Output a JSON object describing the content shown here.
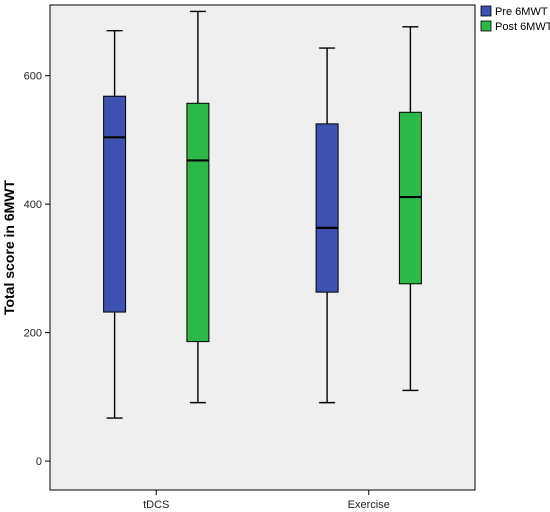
{
  "chart_data": {
    "type": "boxplot",
    "title": "",
    "xlabel": "",
    "ylabel": "Total score in 6MWT",
    "categories": [
      "tDCS",
      "Exercise"
    ],
    "ylim": [
      -45,
      710
    ],
    "yticks": [
      0,
      200,
      400,
      600
    ],
    "grid": false,
    "legend_position": "top-right",
    "series": [
      {
        "name": "Pre 6MWT",
        "color": "#3f51b0",
        "boxes": [
          {
            "category": "tDCS",
            "min": 67,
            "q1": 232,
            "median": 504,
            "q3": 568,
            "max": 670
          },
          {
            "category": "Exercise",
            "min": 91,
            "q1": 263,
            "median": 363,
            "q3": 525,
            "max": 643
          }
        ]
      },
      {
        "name": "Post 6MWT",
        "color": "#2db84a",
        "boxes": [
          {
            "category": "tDCS",
            "min": 91,
            "q1": 186,
            "median": 468,
            "q3": 557,
            "max": 700
          },
          {
            "category": "Exercise",
            "min": 110,
            "q1": 276,
            "median": 411,
            "q3": 543,
            "max": 676
          }
        ]
      }
    ],
    "plot_background": "#efefef"
  }
}
